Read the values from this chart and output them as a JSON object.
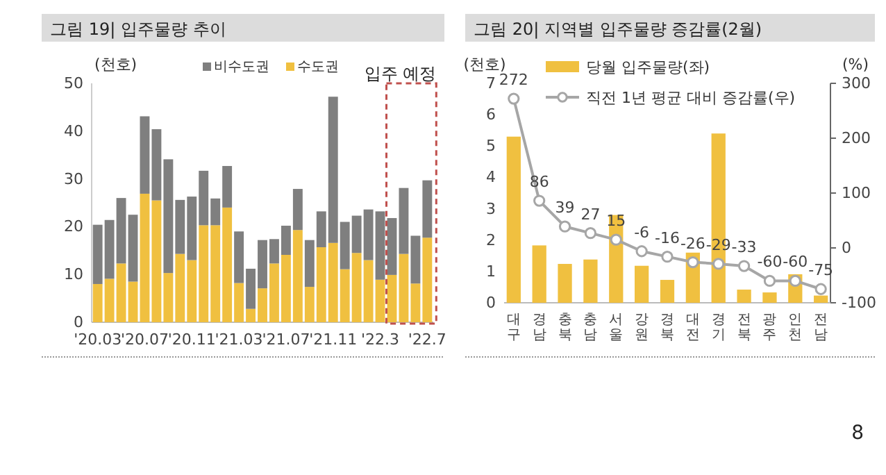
{
  "chart_data": [
    {
      "type": "bar",
      "title": "그림 19| 입주물량 추이",
      "ylabel": "(천호)",
      "stacked": true,
      "legend": "top",
      "grid": false,
      "categories": [
        "'20.03",
        null,
        null,
        null,
        "'20.07",
        null,
        null,
        null,
        "'20.11",
        null,
        null,
        null,
        "'21.03",
        null,
        null,
        null,
        "'21.07",
        null,
        null,
        null,
        "'21.11",
        null,
        null,
        null,
        "'22.3",
        null,
        null,
        null,
        "'22.7"
      ],
      "series": [
        {
          "name": "수도권",
          "color": "#f0c040",
          "values": [
            8.0,
            9.1,
            12.3,
            8.5,
            26.9,
            25.5,
            10.3,
            14.3,
            13.0,
            20.3,
            20.3,
            24.0,
            8.2,
            2.8,
            7.1,
            12.3,
            14.1,
            19.3,
            7.4,
            15.7,
            16.6,
            11.1,
            14.5,
            13.0,
            8.9,
            9.9,
            14.3,
            8.1,
            17.7
          ]
        },
        {
          "name": "비수도권",
          "color": "#7f7f7f",
          "values": [
            12.4,
            12.3,
            13.7,
            14.0,
            16.2,
            14.9,
            23.8,
            11.3,
            13.3,
            11.4,
            5.6,
            8.7,
            10.8,
            8.4,
            10.1,
            5.1,
            6.1,
            8.6,
            9.8,
            7.5,
            30.6,
            9.9,
            7.8,
            10.6,
            14.3,
            11.9,
            13.8,
            10.0,
            12.0
          ]
        }
      ],
      "ylim": [
        0,
        50
      ],
      "yticks": [
        0,
        10,
        20,
        30,
        40,
        50
      ],
      "annotations": [
        "입주 예정",
        "8"
      ]
    },
    {
      "type": "bar",
      "title": "그림 20| 지역별 입주물량 증감률(2월)",
      "ylabel": "(천호)",
      "y2label": "(%)",
      "legend": "top",
      "grid": false,
      "marker": "circle",
      "categories": [
        "대구",
        "경남",
        "충북",
        "충남",
        "서울",
        "강원",
        "경북",
        "대전",
        "경기",
        "전북",
        "광주",
        "인천",
        "전남"
      ],
      "series": [
        {
          "name": "당월 입주물량(좌)",
          "color": "#f0c040",
          "values": [
            5.3,
            1.83,
            1.24,
            1.38,
            2.8,
            1.18,
            0.73,
            1.6,
            5.4,
            0.42,
            0.33,
            0.91,
            0.23
          ]
        },
        {
          "name": "직전 1년 평균 대비 증감률(우)",
          "type": "line",
          "axis": "y2",
          "color": "#a6a6a6",
          "values": [
            272,
            86,
            39,
            27,
            15,
            -6,
            -16,
            -26,
            -29,
            -33,
            -60,
            -60,
            -75
          ],
          "value_labels": [
            "272",
            "86",
            "39",
            "27",
            "15",
            "-6",
            "-16",
            "-26",
            "-29",
            "-33",
            "-60",
            "-60",
            "-75"
          ]
        }
      ],
      "ylim": [
        0,
        7
      ],
      "yticks": [
        0,
        1,
        2,
        3,
        4,
        5,
        6,
        7
      ],
      "y2lim": [
        -100,
        300
      ],
      "y2ticks": [
        -100,
        0,
        100,
        200,
        300
      ]
    }
  ]
}
